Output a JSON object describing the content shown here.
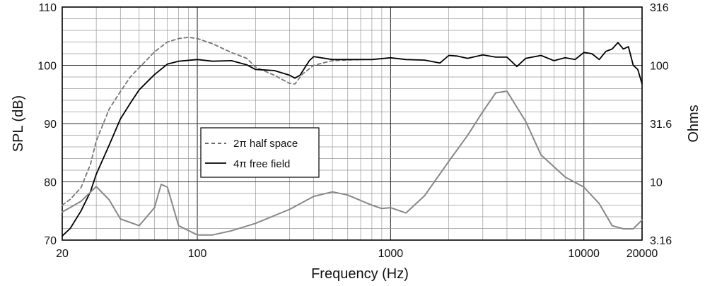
{
  "chart_data": {
    "type": "line",
    "xlabel": "Frequency (Hz)",
    "ylabel": "SPL (dB)",
    "y2label": "Ohms",
    "xscale": "log",
    "xlim": [
      20,
      20000
    ],
    "ylim": [
      70,
      110
    ],
    "y2scale": "log",
    "y2lim": [
      3.16,
      316
    ],
    "x_ticks": [
      20,
      100,
      1000,
      10000,
      20000
    ],
    "x_tick_labels": [
      "20",
      "100",
      "1000",
      "10000",
      "20000"
    ],
    "y_ticks": [
      70,
      80,
      90,
      100,
      110
    ],
    "y_tick_labels": [
      "70",
      "80",
      "90",
      "100",
      "110"
    ],
    "y2_ticks": [
      3.16,
      10,
      31.6,
      100,
      316
    ],
    "y2_tick_labels": [
      "3.16",
      "10",
      "31.6",
      "100",
      "316"
    ],
    "grid": true,
    "legend": {
      "placement": "center-left"
    },
    "series": [
      {
        "name": "2π half space",
        "style": "dashed",
        "color": "#777777",
        "axis": "left",
        "x": [
          20,
          22,
          25,
          28,
          30,
          35,
          40,
          45,
          50,
          55,
          60,
          70,
          80,
          90,
          100,
          120,
          150,
          180,
          200,
          250,
          300,
          320,
          350,
          400,
          500,
          700
        ],
        "y": [
          76,
          77,
          79,
          83,
          87,
          92.5,
          95.5,
          98,
          99.6,
          101,
          102.3,
          104,
          104.6,
          104.8,
          104.6,
          103.7,
          102.2,
          101.2,
          99.7,
          98.3,
          96.9,
          96.8,
          98.5,
          100,
          100.8,
          101
        ]
      },
      {
        "name": "4π free field",
        "style": "solid",
        "color": "#000000",
        "axis": "left",
        "x": [
          20,
          22,
          25,
          28,
          30,
          35,
          40,
          45,
          50,
          60,
          70,
          80,
          100,
          120,
          150,
          180,
          200,
          250,
          300,
          320,
          340,
          380,
          400,
          500,
          600,
          800,
          1000,
          1200,
          1500,
          1800,
          2000,
          2200,
          2500,
          3000,
          3500,
          4000,
          4500,
          5000,
          6000,
          7000,
          8000,
          9000,
          10000,
          11000,
          12000,
          13000,
          14000,
          15000,
          16000,
          17000,
          18000,
          19000,
          20000
        ],
        "y": [
          70.7,
          72,
          75,
          78.3,
          81.3,
          86.3,
          90.8,
          93.5,
          95.8,
          98.4,
          100.2,
          100.7,
          101,
          100.7,
          100.8,
          100.1,
          99.3,
          99.1,
          98.3,
          97.8,
          98.3,
          100.8,
          101.5,
          101,
          101,
          101,
          101.3,
          101,
          100.9,
          100.4,
          101.7,
          101.6,
          101.2,
          101.8,
          101.4,
          101.4,
          99.8,
          101.2,
          101.7,
          100.8,
          101.3,
          101,
          102.2,
          102,
          101,
          102.4,
          102.8,
          103.9,
          102.8,
          103.2,
          100,
          99.3,
          96.8
        ]
      },
      {
        "name": "",
        "style": "solid",
        "color": "#888888",
        "axis": "right",
        "x": [
          20,
          25,
          30,
          35,
          40,
          50,
          60,
          65,
          70,
          80,
          100,
          120,
          150,
          200,
          300,
          400,
          500,
          600,
          800,
          900,
          1000,
          1200,
          1500,
          2000,
          2500,
          3000,
          3500,
          4000,
          5000,
          6000,
          8000,
          10000,
          12000,
          14000,
          16000,
          18000,
          20000
        ],
        "y": [
          5.5,
          6.8,
          9.1,
          7.0,
          4.8,
          4.2,
          6.0,
          9.5,
          9.0,
          4.2,
          3.5,
          3.5,
          3.8,
          4.4,
          5.8,
          7.5,
          8.2,
          7.7,
          6.3,
          5.9,
          6.0,
          5.4,
          7.6,
          15,
          25,
          40,
          58,
          60,
          33,
          17,
          11,
          9,
          6.5,
          4.2,
          3.95,
          3.95,
          4.7
        ]
      }
    ]
  }
}
